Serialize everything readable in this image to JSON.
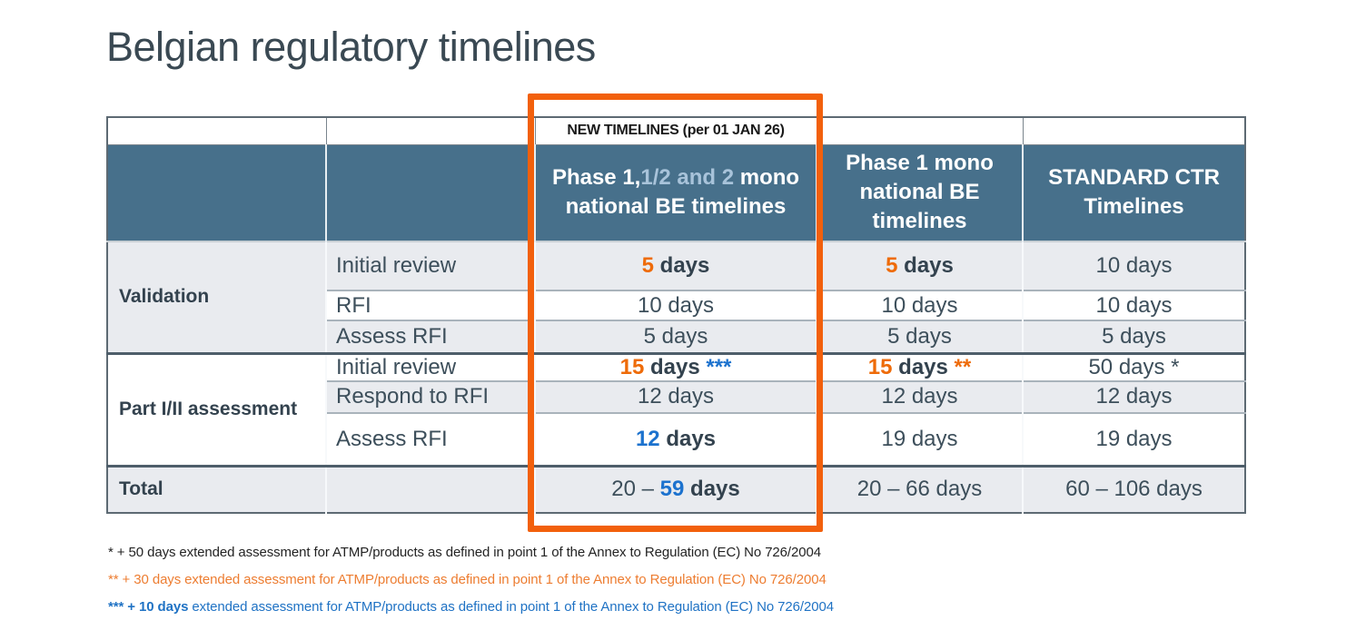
{
  "colors": {
    "title_color": "#3a4953",
    "header_bg": "#47708b",
    "row_alt_bg": "#e9ebef",
    "text_dark": "#3d4f5b",
    "text_emph": "#33424e",
    "accent_orange": "#ee6b09",
    "accent_blue": "#1c72ce",
    "header_light_blue": "#a8c3da",
    "highlight_box": "#f2600c",
    "footnote_orange": "#ed7d31",
    "footnote_blue": "#1f72c4"
  },
  "title": "Belgian regulatory timelines",
  "table": {
    "banner_label": "NEW TIMELINES (per 01 JAN 26)",
    "headers": {
      "col3_segments": [
        {
          "text": "Phase 1,",
          "class": ""
        },
        {
          "text": "1/2 and 2",
          "class": "lightblue"
        },
        {
          "text": " mono national BE timelines",
          "class": ""
        }
      ],
      "col4": "Phase 1 mono national BE timelines",
      "col5": "STANDARD CTR Timelines"
    },
    "rows": [
      {
        "group": "Validation",
        "label": "Initial review",
        "cells": [
          [
            {
              "text": "5",
              "class": "orange"
            },
            {
              "text": " days",
              "class": "bold"
            }
          ],
          [
            {
              "text": "5",
              "class": "orange"
            },
            {
              "text": " days",
              "class": "bold"
            }
          ],
          [
            {
              "text": "10 days",
              "class": ""
            }
          ]
        ]
      },
      {
        "label": "RFI",
        "cells": [
          [
            {
              "text": "10 days",
              "class": ""
            }
          ],
          [
            {
              "text": "10 days",
              "class": ""
            }
          ],
          [
            {
              "text": "10 days",
              "class": ""
            }
          ]
        ]
      },
      {
        "label": "Assess RFI",
        "cells": [
          [
            {
              "text": "5 days",
              "class": ""
            }
          ],
          [
            {
              "text": "5 days",
              "class": ""
            }
          ],
          [
            {
              "text": "5 days",
              "class": ""
            }
          ]
        ]
      },
      {
        "group": "Part I/II assessment",
        "label": "Initial review",
        "cells": [
          [
            {
              "text": "15",
              "class": "orange"
            },
            {
              "text": " days ",
              "class": "bold"
            },
            {
              "text": "***",
              "class": "blue"
            }
          ],
          [
            {
              "text": "15",
              "class": "orange"
            },
            {
              "text": " days ",
              "class": "bold"
            },
            {
              "text": "**",
              "class": "orange"
            }
          ],
          [
            {
              "text": "50 days *",
              "class": ""
            }
          ]
        ]
      },
      {
        "label": "Respond to RFI",
        "cells": [
          [
            {
              "text": "12 days",
              "class": ""
            }
          ],
          [
            {
              "text": "12 days",
              "class": ""
            }
          ],
          [
            {
              "text": "12 days",
              "class": ""
            }
          ]
        ]
      },
      {
        "label": "Assess RFI",
        "cells": [
          [
            {
              "text": "12",
              "class": "blue"
            },
            {
              "text": " days",
              "class": "bold"
            }
          ],
          [
            {
              "text": "19 days",
              "class": ""
            }
          ],
          [
            {
              "text": "19 days",
              "class": ""
            }
          ]
        ]
      },
      {
        "group": "Total",
        "cells": [
          [
            {
              "text": "20 – ",
              "class": ""
            },
            {
              "text": "59",
              "class": "blue"
            },
            {
              "text": " days",
              "class": "bold"
            }
          ],
          [
            {
              "text": "20 – 66 days",
              "class": ""
            }
          ],
          [
            {
              "text": "60 – 106 days",
              "class": ""
            }
          ]
        ]
      }
    ]
  },
  "footnotes": [
    {
      "segments": [
        {
          "text": "* + 50 days extended assessment for ATMP/products as defined in point 1 of the Annex to Regulation (EC) No 726/2004",
          "class": ""
        }
      ]
    },
    {
      "segments": [
        {
          "text": "** + 30 days extended assessment for ATMP/products as defined in point 1 of the Annex to Regulation (EC) No 726/2004",
          "class": ""
        }
      ]
    },
    {
      "segments": [
        {
          "text": "*** + 10 days",
          "class": "bold"
        },
        {
          "text": " extended assessment for ATMP/products as defined in point 1 of the Annex to Regulation (EC) No 726/2004",
          "class": ""
        }
      ]
    }
  ]
}
